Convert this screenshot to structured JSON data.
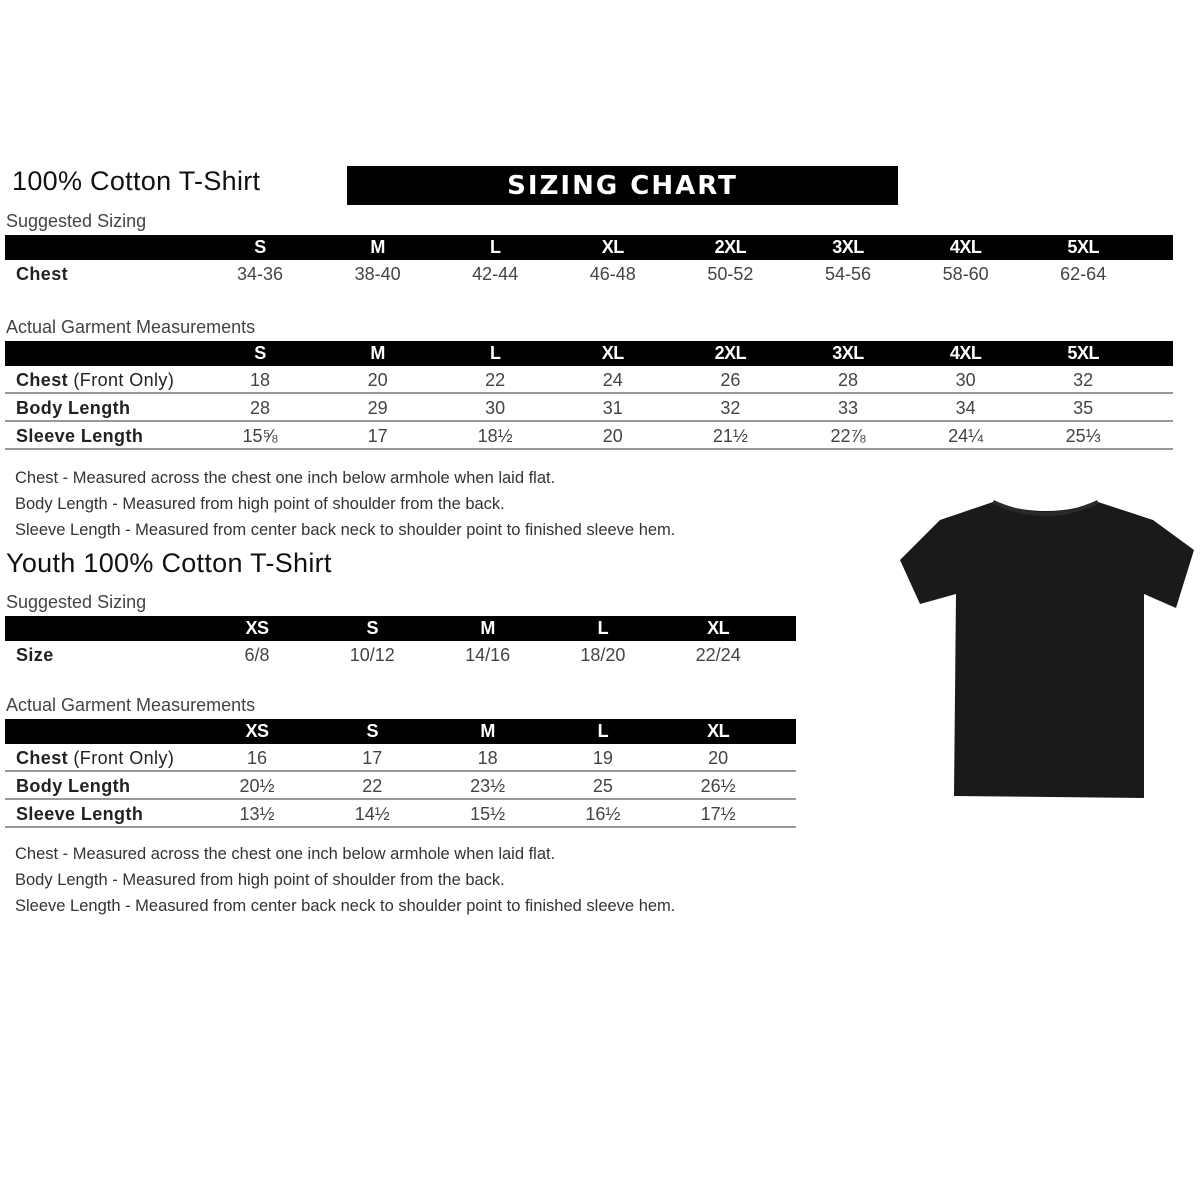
{
  "banner": "SIZING CHART",
  "adult": {
    "title": "100% Cotton T-Shirt",
    "suggested_label": "Suggested Sizing",
    "sizes": [
      "S",
      "M",
      "L",
      "XL",
      "2XL",
      "3XL",
      "4XL",
      "5XL"
    ],
    "suggested_rows": [
      {
        "label": "Chest",
        "values": [
          "34-36",
          "38-40",
          "42-44",
          "46-48",
          "50-52",
          "54-56",
          "58-60",
          "62-64"
        ]
      }
    ],
    "actual_label": "Actual Garment Measurements",
    "actual_rows": [
      {
        "label": "Chest",
        "label_extra": " (Front Only)",
        "values": [
          "18",
          "20",
          "22",
          "24",
          "26",
          "28",
          "30",
          "32"
        ]
      },
      {
        "label": "Body Length",
        "values": [
          "28",
          "29",
          "30",
          "31",
          "32",
          "33",
          "34",
          "35"
        ]
      },
      {
        "label": "Sleeve Length",
        "values": [
          "15⅝",
          "17",
          "18½",
          "20",
          "21½",
          "22⅞",
          "24¼",
          "25⅓"
        ]
      }
    ],
    "notes": [
      "Chest - Measured across the chest one inch below armhole when laid flat.",
      "Body Length - Measured from high point of shoulder from the back.",
      "Sleeve Length - Measured from center back neck to shoulder point to finished sleeve hem."
    ]
  },
  "youth": {
    "title": "Youth 100% Cotton T-Shirt",
    "suggested_label": "Suggested Sizing",
    "sizes": [
      "XS",
      "S",
      "M",
      "L",
      "XL"
    ],
    "suggested_rows": [
      {
        "label": "Size",
        "values": [
          "6/8",
          "10/12",
          "14/16",
          "18/20",
          "22/24"
        ]
      }
    ],
    "actual_label": "Actual Garment Measurements",
    "actual_rows": [
      {
        "label": "Chest",
        "label_extra": " (Front Only)",
        "values": [
          "16",
          "17",
          "18",
          "19",
          "20"
        ]
      },
      {
        "label": "Body Length",
        "values": [
          "20½",
          "22",
          "23½",
          "25",
          "26½"
        ]
      },
      {
        "label": "Sleeve Length",
        "values": [
          "13½",
          "14½",
          "15½",
          "16½",
          "17½"
        ]
      }
    ],
    "notes": [
      "Chest - Measured across the chest one inch below armhole when laid flat.",
      "Body Length - Measured from high point of shoulder from the back.",
      "Sleeve Length - Measured from center back neck to shoulder point to finished sleeve hem."
    ]
  },
  "colors": {
    "header": "#000000",
    "shirt": "#1a1a1a"
  }
}
